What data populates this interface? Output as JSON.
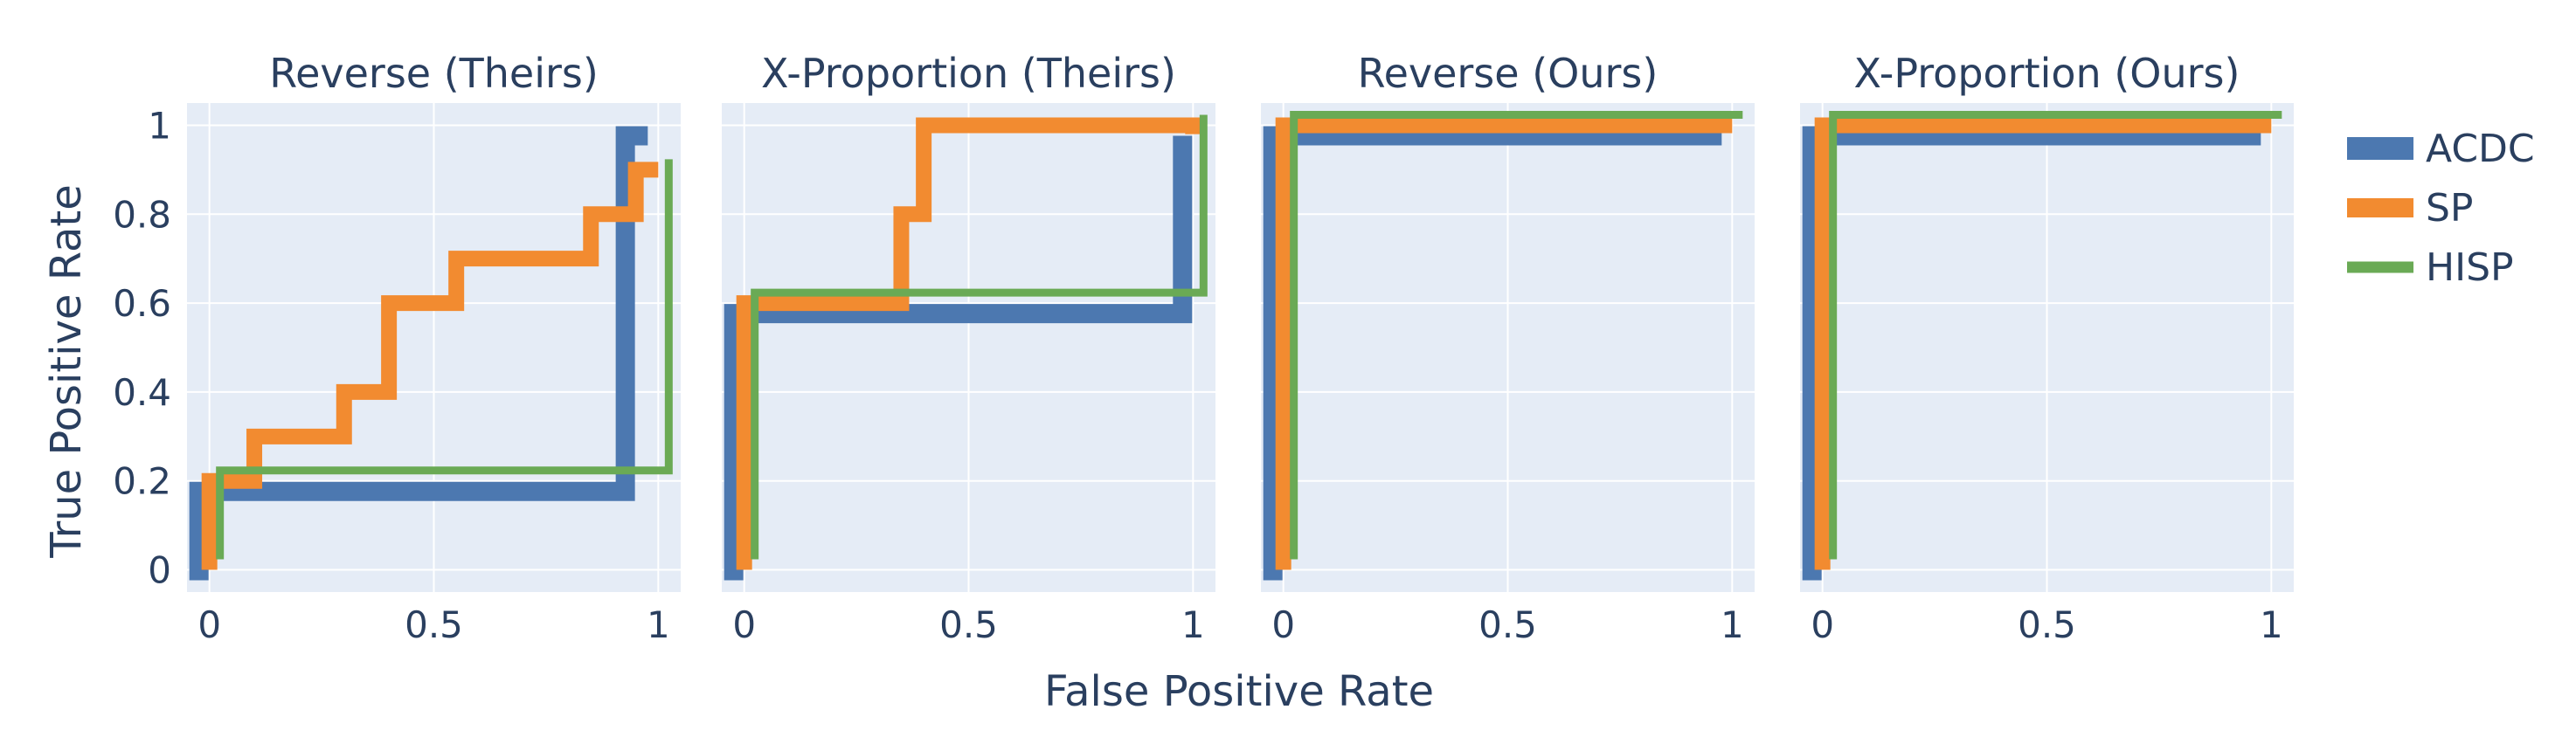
{
  "chart_data": {
    "type": "line",
    "shared_xlabel": "False Positive Rate",
    "shared_ylabel": "True Positive Rate",
    "xlim": [
      -0.05,
      1.05
    ],
    "ylim": [
      -0.05,
      1.05
    ],
    "x_ticks": [
      0,
      0.5,
      1
    ],
    "x_tick_labels": [
      "0",
      "0.5",
      "1"
    ],
    "y_ticks": [
      0,
      0.2,
      0.4,
      0.6,
      0.8,
      1
    ],
    "y_tick_labels": [
      "0",
      "0.2",
      "0.4",
      "0.6",
      "0.8",
      "1"
    ],
    "grid": true,
    "legend_position": "right",
    "background_color": "#e5ecf6",
    "series_styles": [
      {
        "name": "ACDC",
        "color": "#4c78b0",
        "width_level": 3
      },
      {
        "name": "SP",
        "color": "#f28b30",
        "width_level": 2
      },
      {
        "name": "HISP",
        "color": "#6aaa55",
        "width_level": 1
      }
    ],
    "panels": [
      {
        "title": "Reverse (Theirs)",
        "series": [
          {
            "name": "ACDC",
            "x": [
              0,
              0,
              0.95,
              0.95,
              1
            ],
            "y": [
              0,
              0.2,
              0.2,
              1,
              1
            ]
          },
          {
            "name": "SP",
            "x": [
              0,
              0,
              0.1,
              0.1,
              0.3,
              0.3,
              0.4,
              0.4,
              0.55,
              0.55,
              0.85,
              0.85,
              0.95,
              0.95,
              1
            ],
            "y": [
              0,
              0.2,
              0.2,
              0.3,
              0.3,
              0.4,
              0.4,
              0.6,
              0.6,
              0.7,
              0.7,
              0.8,
              0.8,
              0.9,
              0.9
            ]
          },
          {
            "name": "HISP",
            "x": [
              0,
              0,
              1,
              1
            ],
            "y": [
              0,
              0.2,
              0.2,
              0.9
            ]
          }
        ]
      },
      {
        "title": "X-Proportion (Theirs)",
        "series": [
          {
            "name": "ACDC",
            "x": [
              0,
              0,
              1,
              1
            ],
            "y": [
              0,
              0.6,
              0.6,
              1
            ]
          },
          {
            "name": "SP",
            "x": [
              0,
              0,
              0.35,
              0.35,
              0.4,
              0.4,
              1,
              1
            ],
            "y": [
              0,
              0.6,
              0.6,
              0.8,
              0.8,
              1,
              1,
              0.98
            ]
          },
          {
            "name": "HISP",
            "x": [
              0,
              0,
              1,
              1
            ],
            "y": [
              0,
              0.6,
              0.6,
              1
            ]
          }
        ]
      },
      {
        "title": "Reverse (Ours)",
        "series": [
          {
            "name": "ACDC",
            "x": [
              0,
              0,
              1
            ],
            "y": [
              0,
              1,
              1
            ]
          },
          {
            "name": "SP",
            "x": [
              0,
              0,
              1
            ],
            "y": [
              0,
              1,
              1
            ]
          },
          {
            "name": "HISP",
            "x": [
              0,
              0,
              1
            ],
            "y": [
              0,
              1,
              1
            ]
          }
        ]
      },
      {
        "title": "X-Proportion (Ours)",
        "series": [
          {
            "name": "ACDC",
            "x": [
              0,
              0,
              1
            ],
            "y": [
              0,
              1,
              1
            ]
          },
          {
            "name": "SP",
            "x": [
              0,
              0,
              1
            ],
            "y": [
              0,
              1,
              1
            ]
          },
          {
            "name": "HISP",
            "x": [
              0,
              0,
              1
            ],
            "y": [
              0,
              1,
              1
            ]
          }
        ]
      }
    ]
  }
}
